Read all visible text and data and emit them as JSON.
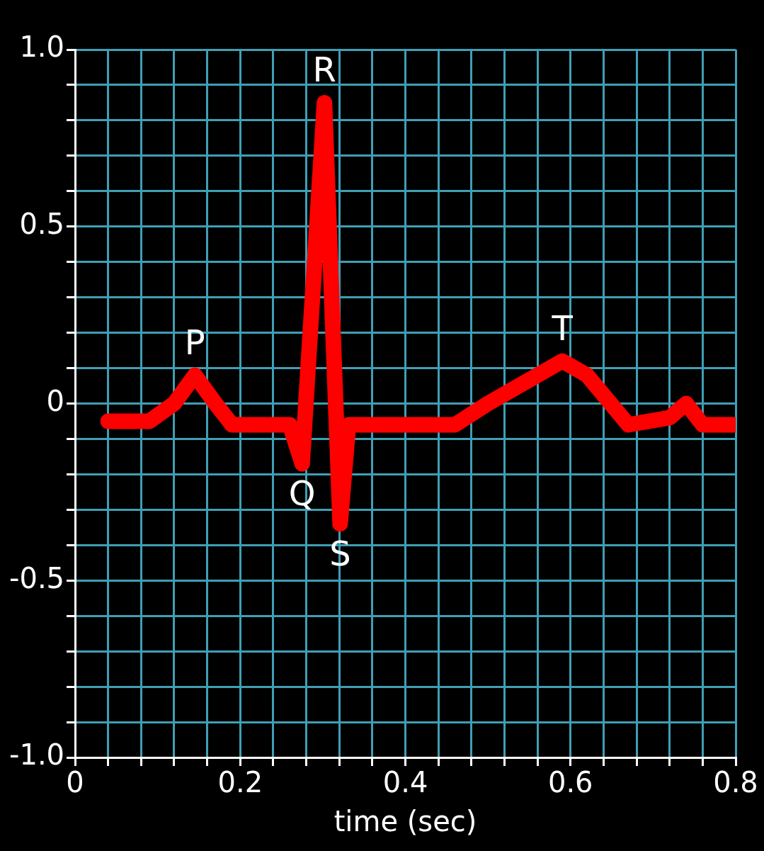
{
  "chart_data": {
    "type": "line",
    "xlabel": "time (sec)",
    "x": [
      0.04,
      0.09,
      0.12,
      0.145,
      0.17,
      0.19,
      0.26,
      0.275,
      0.302,
      0.321,
      0.331,
      0.46,
      0.5,
      0.59,
      0.62,
      0.67,
      0.72,
      0.74,
      0.76,
      0.8
    ],
    "series": [
      {
        "color": "#ff0000",
        "values": [
          -0.05,
          -0.05,
          0.0,
          0.08,
          0.0,
          -0.06,
          -0.06,
          -0.17,
          0.85,
          -0.34,
          -0.06,
          -0.06,
          0.0,
          0.12,
          0.08,
          -0.06,
          -0.04,
          0.0,
          -0.06,
          -0.06
        ]
      }
    ],
    "xlim": [
      0,
      0.8
    ],
    "xticks": [
      0,
      {
        "value": 0.04,
        "label": null
      },
      {
        "value": 0.08,
        "label": null
      },
      {
        "value": 0.12,
        "label": null
      },
      {
        "value": 0.16,
        "label": null
      },
      0.2,
      {
        "value": 0.24,
        "label": null
      },
      {
        "value": 0.28,
        "label": null
      },
      {
        "value": 0.32,
        "label": null
      },
      {
        "value": 0.36,
        "label": null
      },
      0.4,
      {
        "value": 0.44,
        "label": null
      },
      {
        "value": 0.48,
        "label": null
      },
      {
        "value": 0.52,
        "label": null
      },
      {
        "value": 0.56,
        "label": null
      },
      0.6,
      {
        "value": 0.64,
        "label": null
      },
      {
        "value": 0.68,
        "label": null
      },
      {
        "value": 0.72,
        "label": null
      },
      {
        "value": 0.76,
        "label": null
      },
      0.8
    ],
    "ylim": [
      -1,
      1
    ],
    "yticks": [
      {
        "value": -1,
        "label": "-1.0"
      },
      {
        "value": -0.9,
        "label": null
      },
      {
        "value": -0.8,
        "label": null
      },
      {
        "value": -0.7,
        "label": null
      },
      {
        "value": -0.6,
        "label": null
      },
      {
        "value": -0.5,
        "label": "-0.5"
      },
      {
        "value": -0.4,
        "label": null
      },
      {
        "value": -0.3,
        "label": null
      },
      {
        "value": -0.2,
        "label": null
      },
      {
        "value": -0.1,
        "label": null
      },
      0,
      {
        "value": 0.1,
        "label": null
      },
      {
        "value": 0.2,
        "label": null
      },
      {
        "value": 0.3,
        "label": null
      },
      {
        "value": 0.4,
        "label": null
      },
      {
        "value": 0.5,
        "label": "0.5"
      },
      {
        "value": 0.6,
        "label": null
      },
      {
        "value": 0.7,
        "label": null
      },
      {
        "value": 0.8,
        "label": null
      },
      {
        "value": 0.9,
        "label": null
      },
      {
        "value": 1,
        "label": "1.0"
      }
    ],
    "grid": true,
    "legend": false,
    "marker": "none",
    "line_style": "solid",
    "annotations": [
      {
        "text": "P",
        "x": 0.145,
        "y": 0.08
      },
      {
        "text": "Q",
        "x": 0.275,
        "y": -0.17
      },
      {
        "text": "R",
        "x": 0.302,
        "y": 0.85
      },
      {
        "text": "S",
        "x": 0.321,
        "y": -0.34
      },
      {
        "text": "T",
        "x": 0.59,
        "y": 0.12
      }
    ]
  }
}
